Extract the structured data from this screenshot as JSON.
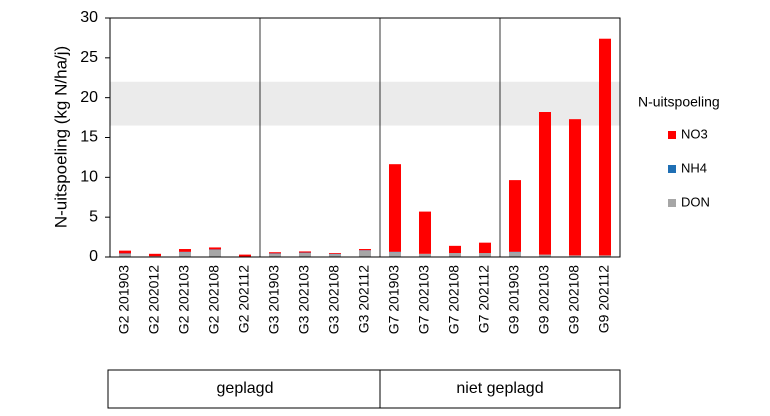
{
  "chart_data": {
    "type": "stacked_bar",
    "y_label": "N-uitspoeling (kg N/ha/j)",
    "categories": [
      "G2 201903",
      "G2 202012",
      "G2 202103",
      "G2 202108",
      "G2 202112",
      "G3 201903",
      "G3 202103",
      "G3 202108",
      "G3 202112",
      "G7 201903",
      "G7 202103",
      "G7 202108",
      "G7 202112",
      "G9 201903",
      "G9 202103",
      "G9 202108",
      "G9 202112"
    ],
    "series": [
      {
        "name": "DON",
        "color": "#a6a6a6",
        "values": [
          0.4,
          0.1,
          0.6,
          0.9,
          0.05,
          0.4,
          0.5,
          0.35,
          0.8,
          0.6,
          0.4,
          0.5,
          0.5,
          0.6,
          0.3,
          0.2,
          0.2
        ]
      },
      {
        "name": "NH4",
        "color": "#1f6fb4",
        "values": [
          0.05,
          0,
          0.05,
          0.05,
          0,
          0.05,
          0.05,
          0.05,
          0.05,
          0.05,
          0,
          0,
          0,
          0.05,
          0,
          0,
          0
        ]
      },
      {
        "name": "NO3",
        "color": "#ff0000",
        "values": [
          0.35,
          0.3,
          0.35,
          0.25,
          0.25,
          0.15,
          0.15,
          0.1,
          0.15,
          11.0,
          5.3,
          0.9,
          1.3,
          9.0,
          17.9,
          17.1,
          27.2
        ]
      }
    ],
    "legend_title": "N-uitspoeling",
    "ylim": [
      0,
      30
    ],
    "yticks": [
      0,
      5,
      10,
      15,
      20,
      25,
      30
    ],
    "band": [
      16.5,
      22
    ],
    "band_color": "#ebebeb",
    "groups": [
      {
        "label": "geplagd",
        "count": 9
      },
      {
        "label": "niet geplagd",
        "count": 8
      }
    ]
  }
}
